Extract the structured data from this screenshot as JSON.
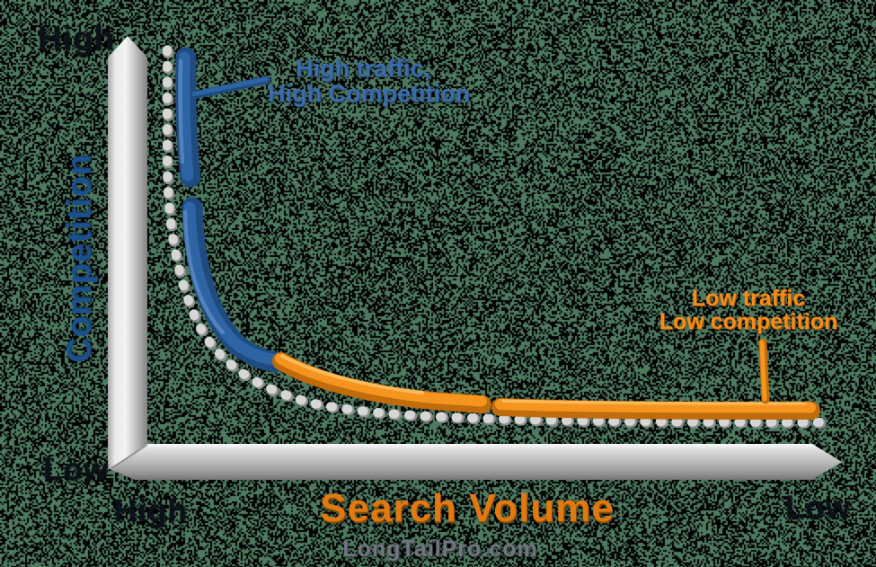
{
  "y_axis": {
    "label": "Competition",
    "top_tick": "High",
    "bottom_tick": "Low"
  },
  "x_axis": {
    "label": "Search Volume",
    "left_tick": "High",
    "right_tick": "Low"
  },
  "annotations": {
    "head": {
      "line1": "High traffic,",
      "line2": "High Competition"
    },
    "tail": {
      "line1": "Low traffic",
      "line2": "Low competition"
    }
  },
  "watermark": "LongTailPro.com",
  "colors": {
    "background_green": "#4e7b60",
    "background_black": "#000000",
    "blue_curve": "#2e63a4",
    "blue_curve_dark": "#1f4c80",
    "blue_text": "#3c6ca8",
    "competition_blue": "#1b508a",
    "orange_curve": "#f5941f",
    "orange_curve_dark": "#c06c0c",
    "orange_text": "#f28c1a",
    "search_volume_orange": "#e0790f",
    "tick_black": "#0c1017",
    "watermark_gray": "#71757f",
    "dot_light": "#d6d6d6",
    "dot_shadow": "#8f8f8f"
  },
  "chart_data": {
    "type": "line",
    "title": "",
    "xlabel": "Search Volume",
    "ylabel": "Competition",
    "x_tick_labels": [
      "High",
      "Low"
    ],
    "y_tick_labels": [
      "High",
      "Low"
    ],
    "x_axis_direction": "High search volume at left, Low at right (3D gray arrow bar)",
    "y_axis_direction": "High competition at top, Low at bottom (3D gray arrow bar)",
    "grid": false,
    "legend_position": "none",
    "series": [
      {
        "name": "High traffic, High Competition (head)",
        "color": "#2e63a4",
        "x_norm": [
          0.1,
          0.1,
          0.11,
          0.13,
          0.17,
          0.22,
          0.26
        ],
        "y_norm": [
          0.97,
          0.8,
          0.62,
          0.45,
          0.32,
          0.24,
          0.21
        ]
      },
      {
        "name": "Low traffic, Low competition (long tail)",
        "color": "#f5941f",
        "x_norm": [
          0.26,
          0.35,
          0.45,
          0.55,
          0.7,
          0.85,
          0.97
        ],
        "y_norm": [
          0.21,
          0.13,
          0.1,
          0.09,
          0.085,
          0.08,
          0.078
        ],
        "note": "flat long-tail segment"
      },
      {
        "name": "dashed guide curve",
        "color": "#d6d6d6",
        "style": "dotted",
        "x_norm": [
          0.08,
          0.08,
          0.1,
          0.14,
          0.2,
          0.3,
          0.45,
          0.65,
          0.95
        ],
        "y_norm": [
          0.98,
          0.75,
          0.5,
          0.35,
          0.25,
          0.16,
          0.11,
          0.085,
          0.08
        ]
      }
    ],
    "annotations": [
      {
        "text": "High traffic, High Competition",
        "target": "head of curve",
        "color": "#3c6ca8"
      },
      {
        "text": "Low traffic Low competition",
        "target": "tail of curve",
        "color": "#f28c1a"
      }
    ]
  }
}
